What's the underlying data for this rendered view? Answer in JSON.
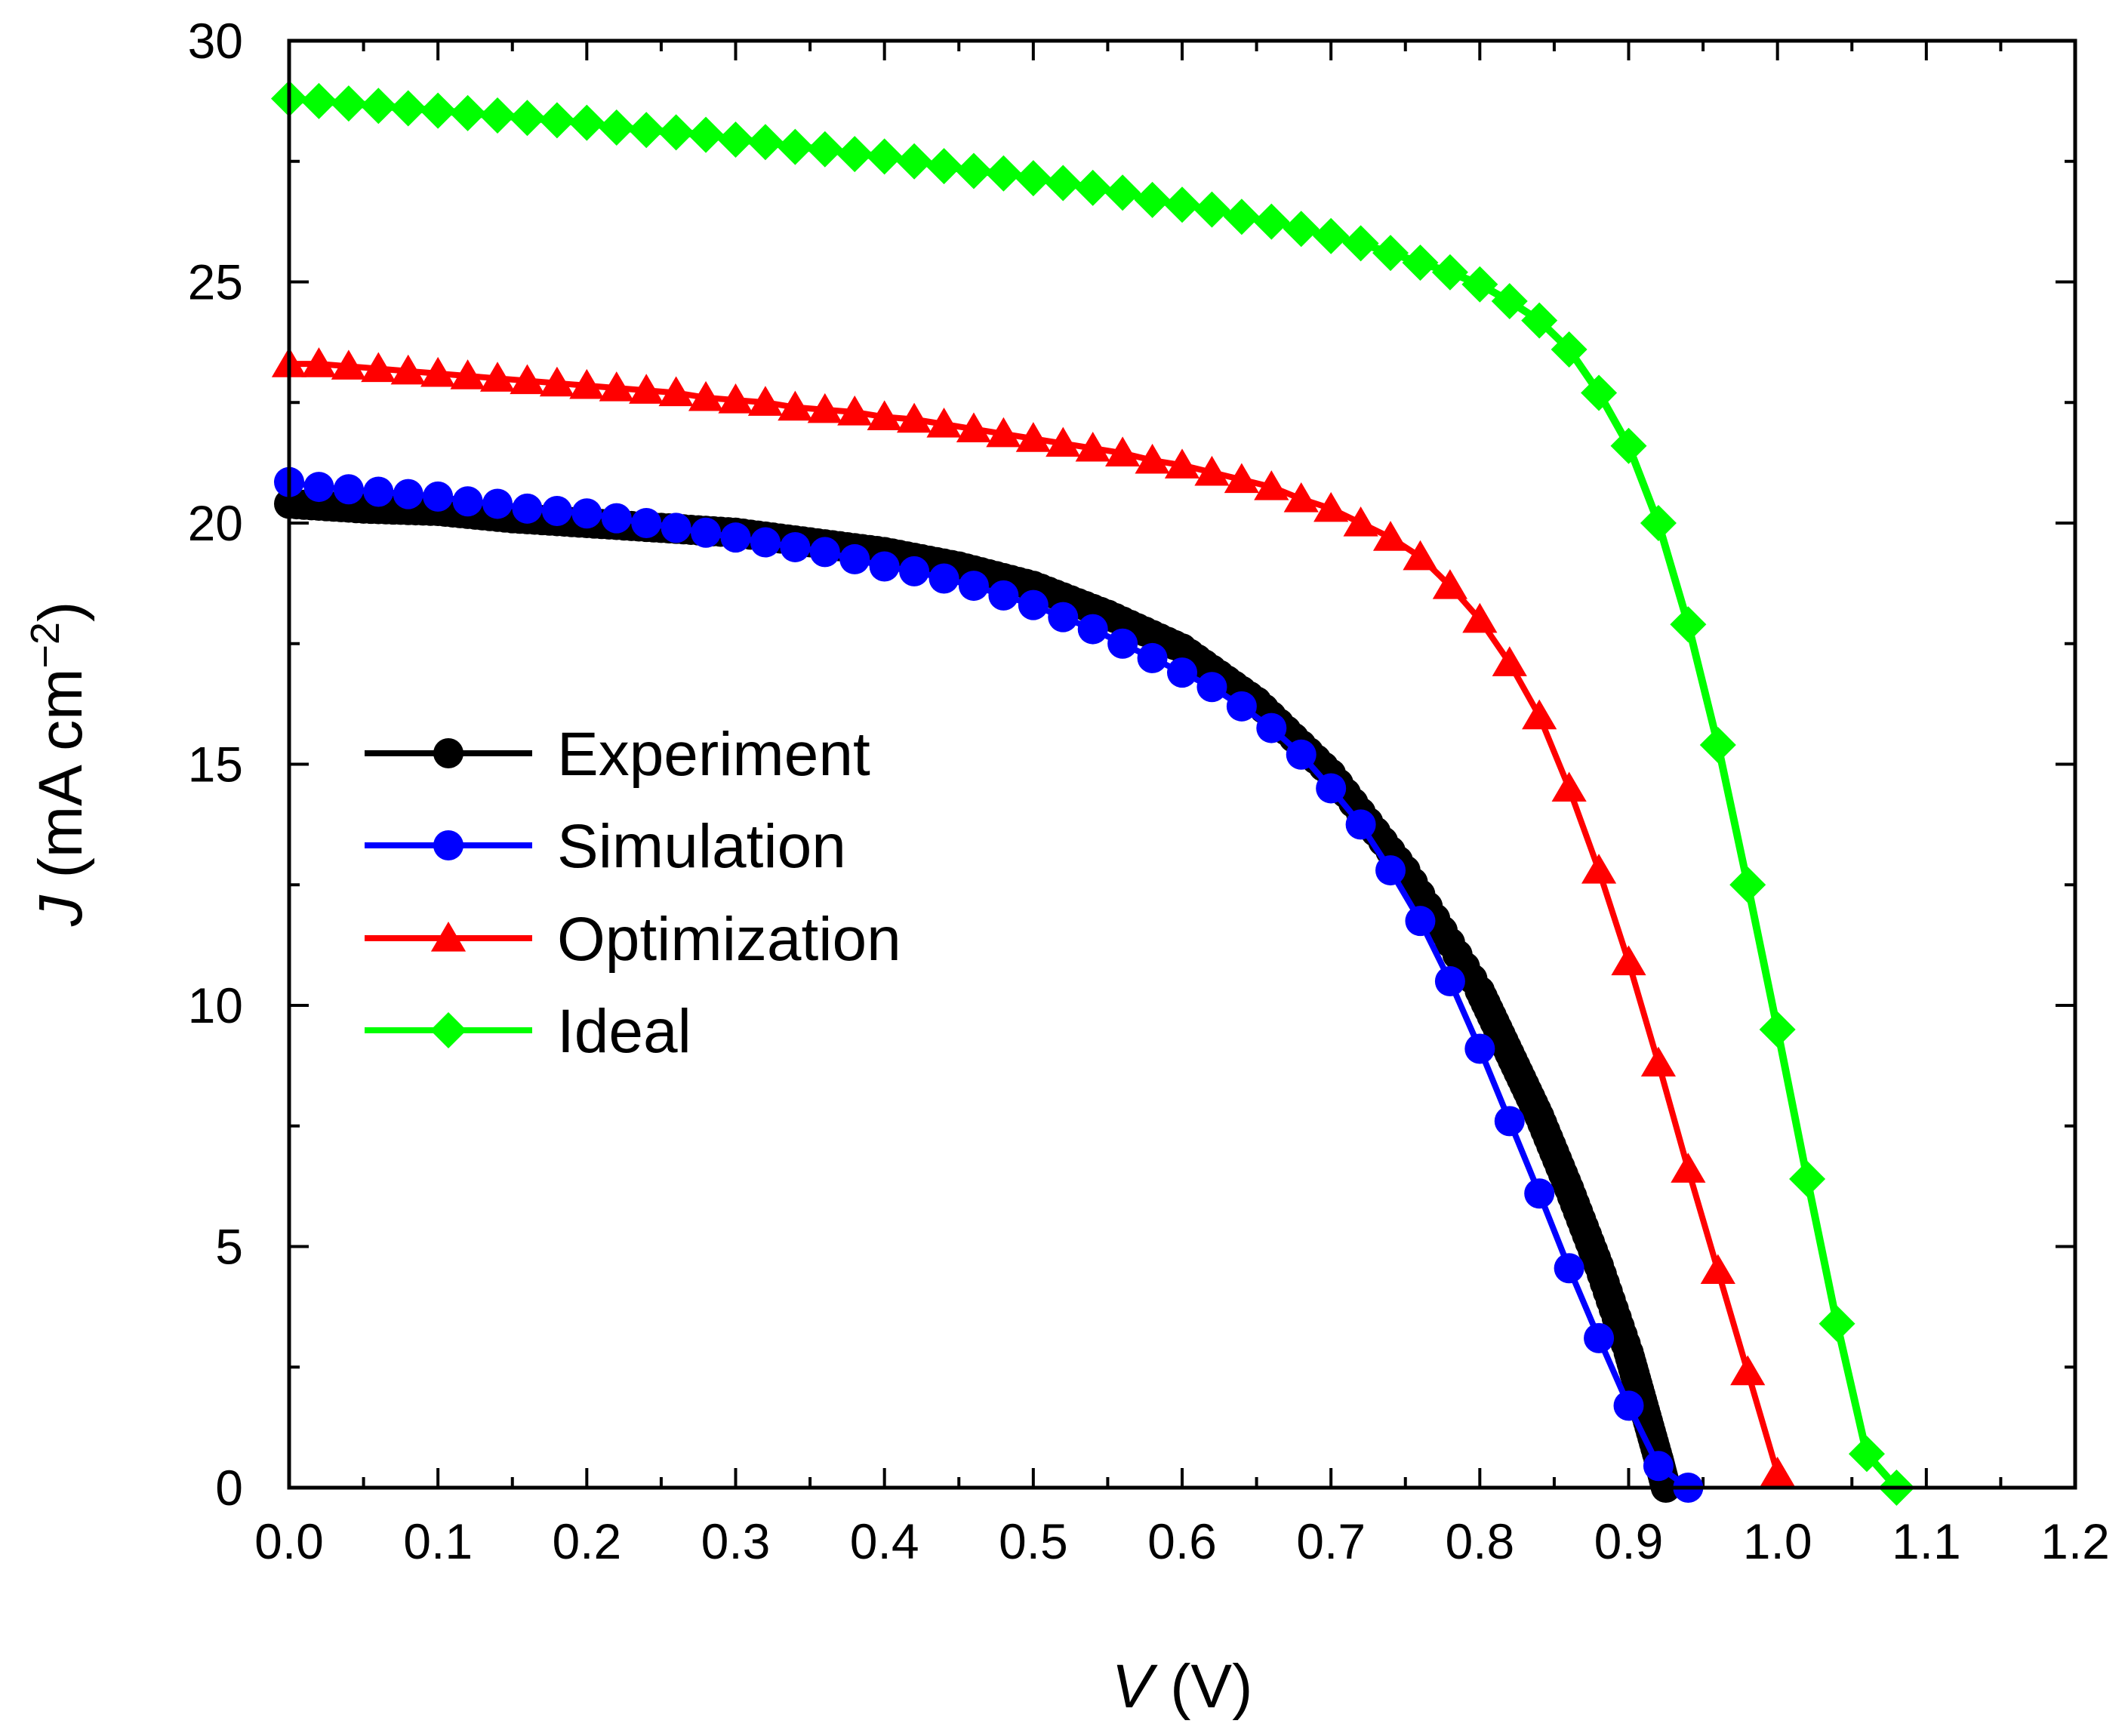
{
  "chart_data": {
    "type": "line",
    "title": "",
    "xlabel": {
      "var": "V",
      "unit": " (V)"
    },
    "ylabel": {
      "var": "J",
      "unit_main": " (mA cm",
      "unit_exp": "−2",
      "unit_close": ")"
    },
    "xlim": [
      0,
      1.2
    ],
    "ylim": [
      0,
      30
    ],
    "x_ticks": [
      "0.0",
      "0.1",
      "0.2",
      "0.3",
      "0.4",
      "0.5",
      "0.6",
      "0.7",
      "0.8",
      "0.9",
      "1.0",
      "1.1",
      "1.2"
    ],
    "y_ticks": [
      "0",
      "5",
      "10",
      "15",
      "20",
      "25",
      "30"
    ],
    "x_tick_values": [
      0,
      0.1,
      0.2,
      0.3,
      0.4,
      0.5,
      0.6,
      0.7,
      0.8,
      0.9,
      1.0,
      1.1,
      1.2
    ],
    "y_tick_values": [
      0,
      5,
      10,
      15,
      20,
      25,
      30
    ],
    "legend_position": "left-middle",
    "series": [
      {
        "name": "Experiment",
        "color": "#000000",
        "marker": "circle",
        "x": [
          0,
          0.05,
          0.1,
          0.15,
          0.2,
          0.25,
          0.3,
          0.35,
          0.4,
          0.45,
          0.5,
          0.55,
          0.6,
          0.65,
          0.7,
          0.75,
          0.8,
          0.82,
          0.84,
          0.86,
          0.88,
          0.9,
          0.91,
          0.92,
          0.925
        ],
        "y": [
          20.4,
          20.3,
          20.25,
          20.1,
          20.0,
          19.9,
          19.8,
          19.6,
          19.4,
          19.1,
          18.7,
          18.1,
          17.4,
          16.3,
          14.8,
          12.8,
          10.3,
          9.0,
          7.7,
          6.2,
          4.6,
          2.8,
          1.7,
          0.6,
          0.0
        ]
      },
      {
        "name": "Simulation",
        "color": "#0000ff",
        "marker": "circle",
        "x": [
          0,
          0.02,
          0.04,
          0.06,
          0.08,
          0.1,
          0.12,
          0.14,
          0.16,
          0.18,
          0.2,
          0.22,
          0.24,
          0.26,
          0.28,
          0.3,
          0.32,
          0.34,
          0.36,
          0.38,
          0.4,
          0.42,
          0.44,
          0.46,
          0.48,
          0.5,
          0.52,
          0.54,
          0.56,
          0.58,
          0.6,
          0.62,
          0.64,
          0.66,
          0.68,
          0.7,
          0.72,
          0.74,
          0.76,
          0.78,
          0.8,
          0.82,
          0.84,
          0.86,
          0.88,
          0.9,
          0.92,
          0.94
        ],
        "y": [
          20.85,
          20.75,
          20.7,
          20.65,
          20.6,
          20.55,
          20.45,
          20.4,
          20.3,
          20.25,
          20.2,
          20.1,
          20.0,
          19.9,
          19.8,
          19.7,
          19.6,
          19.5,
          19.4,
          19.25,
          19.1,
          19.0,
          18.85,
          18.7,
          18.5,
          18.3,
          18.05,
          17.8,
          17.5,
          17.2,
          16.9,
          16.6,
          16.2,
          15.75,
          15.2,
          14.5,
          13.75,
          12.8,
          11.75,
          10.5,
          9.1,
          7.6,
          6.1,
          4.55,
          3.1,
          1.7,
          0.45,
          0.0
        ]
      },
      {
        "name": "Optimization",
        "color": "#ff0000",
        "marker": "triangle",
        "x": [
          0,
          0.02,
          0.04,
          0.06,
          0.08,
          0.1,
          0.12,
          0.14,
          0.16,
          0.18,
          0.2,
          0.22,
          0.24,
          0.26,
          0.28,
          0.3,
          0.32,
          0.34,
          0.36,
          0.38,
          0.4,
          0.42,
          0.44,
          0.46,
          0.48,
          0.5,
          0.52,
          0.54,
          0.56,
          0.58,
          0.6,
          0.62,
          0.64,
          0.66,
          0.68,
          0.7,
          0.72,
          0.74,
          0.76,
          0.78,
          0.8,
          0.82,
          0.84,
          0.86,
          0.88,
          0.9,
          0.92,
          0.94,
          0.96,
          0.98,
          1.0
        ],
        "y": [
          23.3,
          23.3,
          23.25,
          23.2,
          23.15,
          23.1,
          23.05,
          23.0,
          22.95,
          22.9,
          22.85,
          22.8,
          22.75,
          22.7,
          22.6,
          22.55,
          22.5,
          22.4,
          22.35,
          22.3,
          22.2,
          22.15,
          22.05,
          21.95,
          21.85,
          21.75,
          21.65,
          21.55,
          21.45,
          21.3,
          21.2,
          21.05,
          20.9,
          20.75,
          20.5,
          20.3,
          20.0,
          19.7,
          19.3,
          18.7,
          18.0,
          17.1,
          16.0,
          14.5,
          12.8,
          10.9,
          8.8,
          6.6,
          4.5,
          2.4,
          0.3
        ]
      },
      {
        "name": "Ideal",
        "color": "#00ff00",
        "marker": "diamond",
        "x": [
          0,
          0.02,
          0.04,
          0.06,
          0.08,
          0.1,
          0.12,
          0.14,
          0.16,
          0.18,
          0.2,
          0.22,
          0.24,
          0.26,
          0.28,
          0.3,
          0.32,
          0.34,
          0.36,
          0.38,
          0.4,
          0.42,
          0.44,
          0.46,
          0.48,
          0.5,
          0.52,
          0.54,
          0.56,
          0.58,
          0.6,
          0.62,
          0.64,
          0.66,
          0.68,
          0.7,
          0.72,
          0.74,
          0.76,
          0.78,
          0.8,
          0.82,
          0.84,
          0.86,
          0.88,
          0.9,
          0.92,
          0.94,
          0.96,
          0.98,
          1.0,
          1.02,
          1.04,
          1.06,
          1.08
        ],
        "y": [
          28.8,
          28.75,
          28.7,
          28.65,
          28.6,
          28.55,
          28.5,
          28.45,
          28.4,
          28.35,
          28.3,
          28.2,
          28.15,
          28.1,
          28.05,
          27.95,
          27.9,
          27.8,
          27.75,
          27.65,
          27.6,
          27.5,
          27.4,
          27.3,
          27.25,
          27.15,
          27.05,
          26.95,
          26.85,
          26.7,
          26.6,
          26.5,
          26.35,
          26.25,
          26.1,
          25.95,
          25.8,
          25.6,
          25.4,
          25.2,
          24.95,
          24.6,
          24.2,
          23.6,
          22.7,
          21.6,
          20.0,
          17.9,
          15.4,
          12.5,
          9.5,
          6.4,
          3.4,
          0.7,
          0.0
        ]
      }
    ]
  }
}
